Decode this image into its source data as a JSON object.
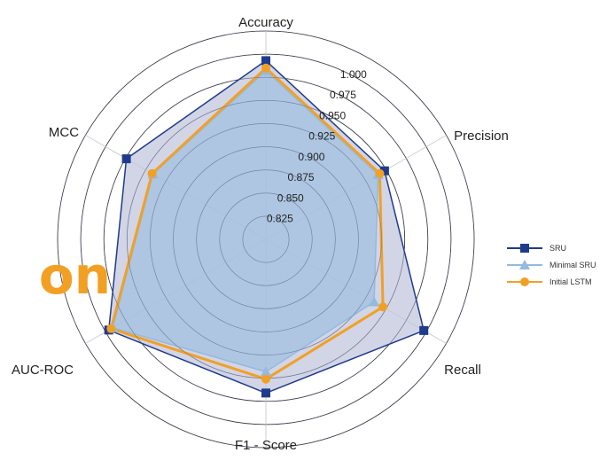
{
  "overlay_text": "on",
  "chart_data": {
    "type": "radar",
    "axes": [
      "Accuracy",
      "Precision",
      "Recall",
      "F1 - Score",
      "AUC-ROC",
      "MCC"
    ],
    "radial_ticks": [
      "0.825",
      "0.850",
      "0.875",
      "0.900",
      "0.925",
      "0.950",
      "0.975",
      "1.000"
    ],
    "rlim": [
      0.8,
      1.025
    ],
    "series": [
      {
        "name": "SRU",
        "values": [
          0.993,
          0.948,
          0.997,
          0.966,
          0.996,
          0.974
        ],
        "color": "#1f3b8c",
        "marker": "square",
        "fill": "#c3c7dd"
      },
      {
        "name": "Minimal SRU",
        "values": [
          0.982,
          0.94,
          0.935,
          0.943,
          0.991,
          0.941
        ],
        "color": "#93badf",
        "marker": "triangle",
        "fill": "#9ebfe0"
      },
      {
        "name": "Initial LSTM",
        "values": [
          0.985,
          0.942,
          0.946,
          0.951,
          0.993,
          0.942
        ],
        "color": "#f2a024",
        "marker": "circle",
        "fill": "none"
      }
    ],
    "legend_position": "right",
    "grid": true
  }
}
